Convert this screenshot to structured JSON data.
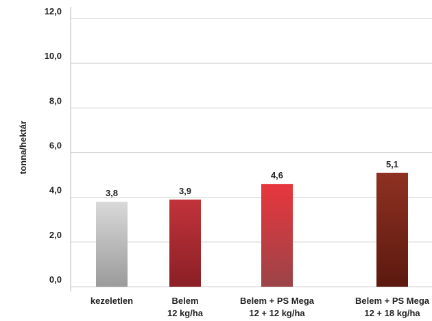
{
  "chart_data": {
    "type": "bar",
    "y_label": "tonna/hektár",
    "categories": [
      [
        "kezeletlen"
      ],
      [
        "Belem",
        "12 kg/ha"
      ],
      [
        "Belem + PS Mega",
        "12 + 12 kg/ha"
      ],
      [
        "Belem + PS Mega",
        "12 + 18 kg/ha"
      ]
    ],
    "values": [
      3.8,
      3.9,
      4.6,
      5.1
    ],
    "value_labels": [
      "3,8",
      "3,9",
      "4,6",
      "5,1"
    ],
    "colors": [
      [
        "#d9d9d9",
        "#9b9b9b"
      ],
      [
        "#c2333b",
        "#8a1f25"
      ],
      [
        "#e8363d",
        "#9b4448"
      ],
      [
        "#8e3122",
        "#5c190f"
      ]
    ],
    "ylim": [
      0,
      12
    ],
    "yticks": [
      {
        "value": 0,
        "label": "0,0"
      },
      {
        "value": 2,
        "label": "2,0"
      },
      {
        "value": 4,
        "label": "4,0"
      },
      {
        "value": 6,
        "label": "6,0"
      },
      {
        "value": 8,
        "label": "8,0"
      },
      {
        "value": 10,
        "label": "10,0"
      },
      {
        "value": 12,
        "label": "12,0"
      }
    ],
    "grid": true
  }
}
